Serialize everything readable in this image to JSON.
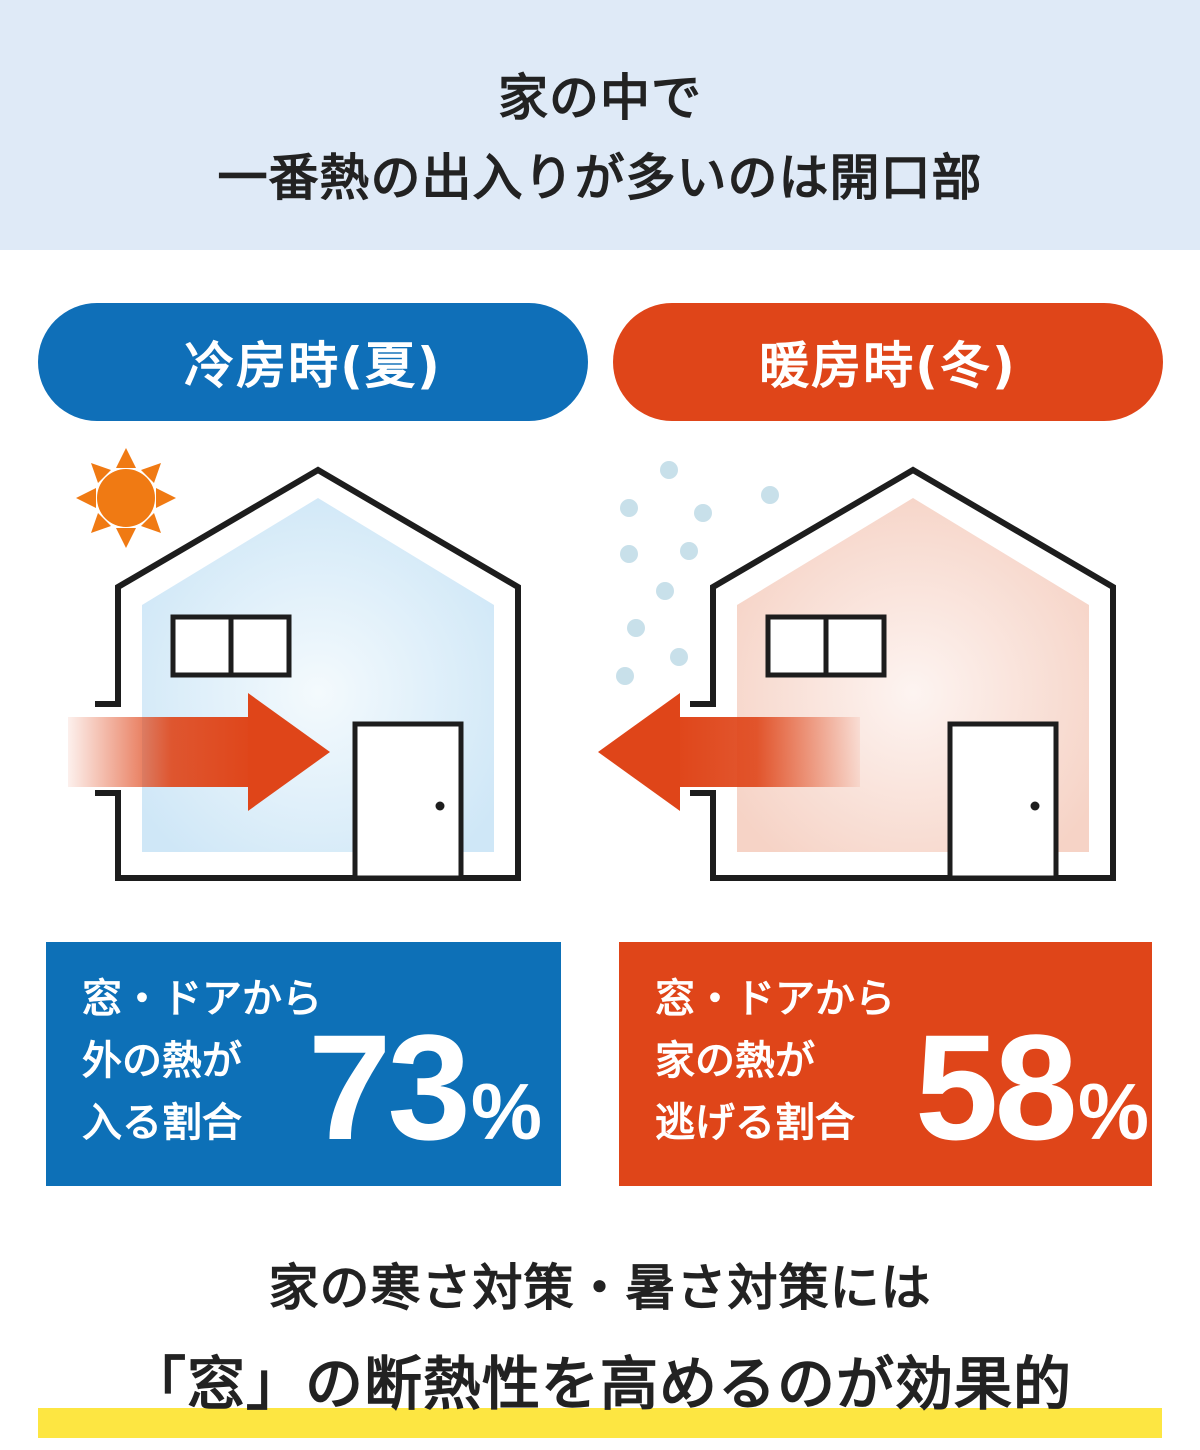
{
  "header": {
    "line1": "家の中で",
    "line2": "一番熱の出入りが多いのは開口部"
  },
  "summer": {
    "label": "冷房時(夏)",
    "stat_line1": "窓・ドアから",
    "stat_line2": "外の熱が",
    "stat_line3": "入る割合",
    "value": "73",
    "unit": "%"
  },
  "winter": {
    "label": "暖房時(冬)",
    "stat_line1": "窓・ドアから",
    "stat_line2": "家の熱が",
    "stat_line3": "逃げる割合",
    "value": "58",
    "unit": "%"
  },
  "conclusion": {
    "line1": "家の寒さ対策・暑さ対策には",
    "line2": "「窓」の断熱性を高めるのが効果的"
  },
  "colors": {
    "summer_blue": "#0f6fb8",
    "winter_red": "#df4519",
    "header_bg": "#dfeaf7",
    "highlight_yellow": "#fde642",
    "sun_orange": "#f07a13",
    "snow_blue": "#c8e0ea"
  }
}
